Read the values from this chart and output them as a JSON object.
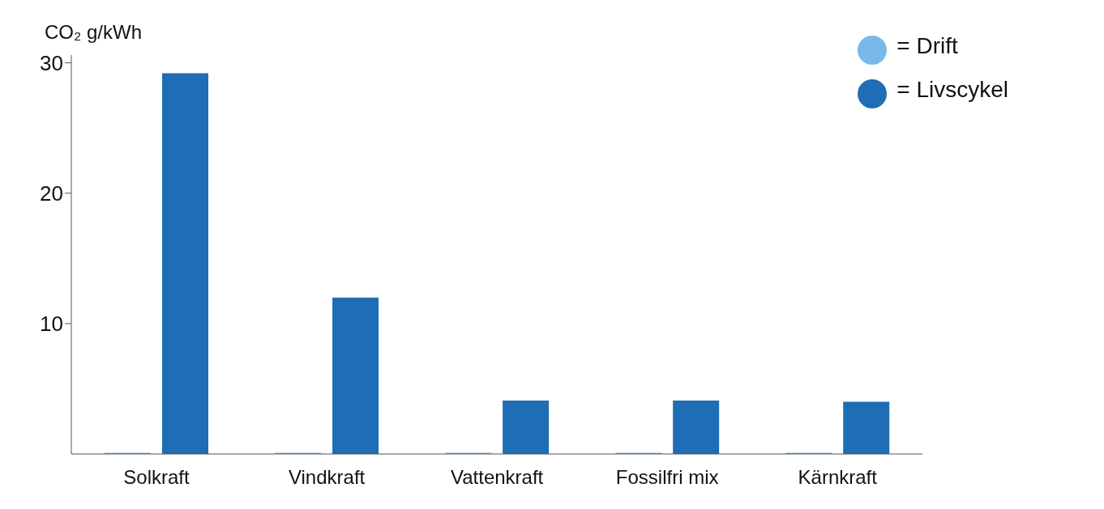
{
  "chart_data": {
    "type": "bar",
    "ylabel": "CO₂ g/kWh",
    "categories": [
      "Solkraft",
      "Vindkraft",
      "Vattenkraft",
      "Fossilfri mix",
      "Kärnkraft"
    ],
    "series": [
      {
        "name": "= Drift",
        "color": "#7ab8e8",
        "values": [
          0.1,
          0.1,
          0.1,
          0.1,
          0.1
        ]
      },
      {
        "name": "= Livscykel",
        "color": "#1f6db5",
        "values": [
          29.2,
          12.0,
          4.1,
          4.1,
          4.0
        ]
      }
    ],
    "ylim": [
      0,
      30.6
    ],
    "yticks": [
      10,
      20,
      30
    ],
    "grid": false,
    "legend": "top right"
  }
}
